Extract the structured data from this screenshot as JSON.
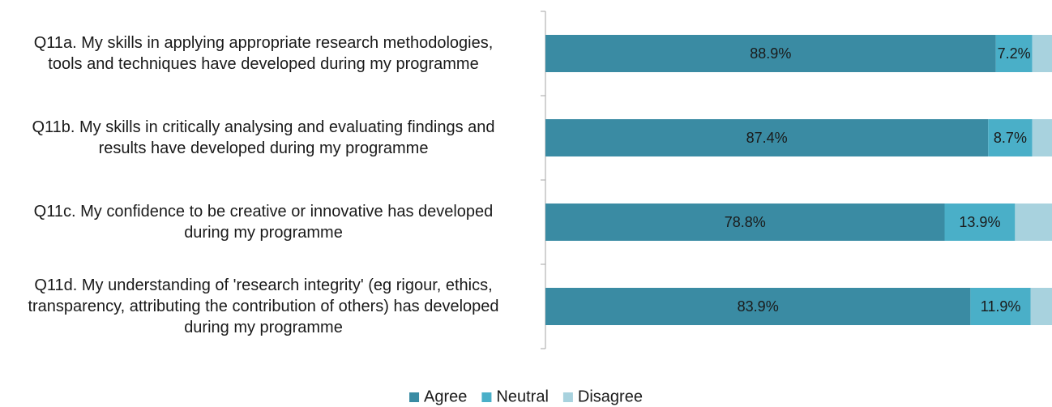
{
  "chart_data": {
    "type": "stacked-barh",
    "categories": [
      "Q11a. My skills in applying appropriate research methodologies, tools and techniques have developed during my programme",
      "Q11b. My skills in critically analysing and evaluating findings and results have developed during my programme",
      "Q11c. My confidence to be creative or innovative has developed during my programme",
      "Q11d. My understanding of 'research integrity' (eg rigour, ethics, transparency, attributing the contribution of others) has developed during my programme"
    ],
    "series": [
      {
        "name": "Agree",
        "color": "#3a8ba3",
        "values": [
          88.9,
          87.4,
          78.8,
          83.9
        ],
        "value_labels": [
          "88.9%",
          "87.4%",
          "78.8%",
          "83.9%"
        ]
      },
      {
        "name": "Neutral",
        "color": "#4aafc8",
        "values": [
          7.2,
          8.7,
          13.9,
          11.9
        ],
        "value_labels": [
          "7.2%",
          "8.7%",
          "13.9%",
          "11.9%"
        ]
      },
      {
        "name": "Disagree",
        "color": "#a8d2de",
        "values": [
          3.9,
          3.9,
          7.3,
          4.2
        ]
      }
    ],
    "xlim": [
      0,
      100
    ],
    "legend": "bottom"
  }
}
